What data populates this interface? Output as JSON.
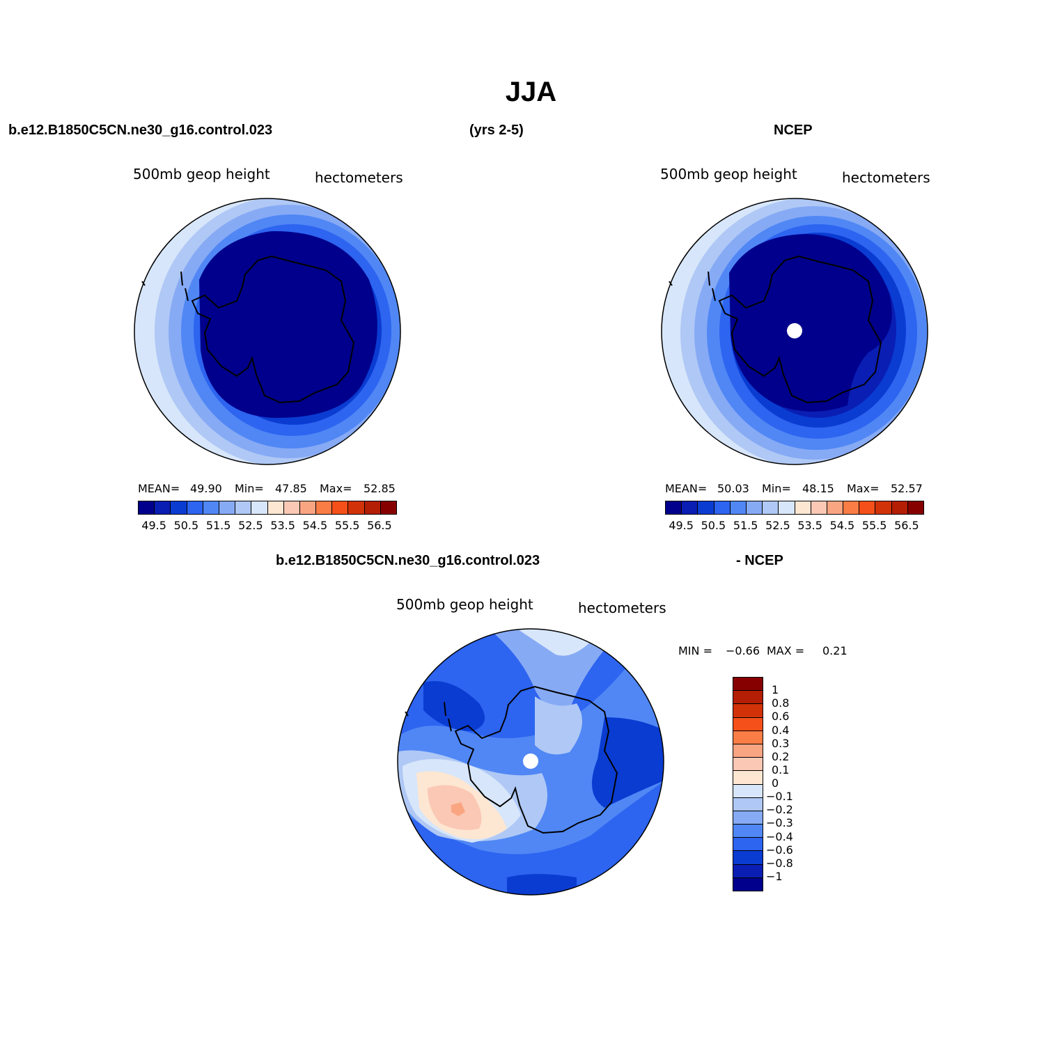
{
  "figure": {
    "title": "JJA",
    "left_header": "b.e12.B1850C5CN.ne30_g16.control.023",
    "center_header": "(yrs 2-5)",
    "right_header": "NCEP"
  },
  "panels": {
    "model": {
      "variable": "500mb geop height",
      "units": "hectometers",
      "mean_label": "MEAN=",
      "mean": "49.90",
      "min_label": "Min=",
      "min": "47.85",
      "max_label": "Max=",
      "max": "52.85"
    },
    "obs": {
      "variable": "500mb geop height",
      "units": "hectometers",
      "mean_label": "MEAN=",
      "mean": "50.03",
      "min_label": "Min=",
      "min": "48.15",
      "max_label": "Max=",
      "max": "52.57"
    },
    "diff": {
      "left_header": "b.e12.B1850C5CN.ne30_g16.control.023",
      "right_header": "- NCEP",
      "variable": "500mb geop height",
      "units": "hectometers",
      "min_label": "MIN =",
      "min": "−0.66",
      "max_label": "MAX =",
      "max": "0.21"
    }
  },
  "colorbars": {
    "absolute": {
      "colors": [
        "#00008c",
        "#0a1eb4",
        "#0a3cd2",
        "#2d64f0",
        "#5087f5",
        "#87aaf5",
        "#afc8f5",
        "#d7e6fa",
        "#fde6d2",
        "#fac8b4",
        "#faa582",
        "#fa7d46",
        "#f55019",
        "#d23208",
        "#b41e05",
        "#870000"
      ],
      "tick_labels": [
        "49.5",
        "50.5",
        "51.5",
        "52.5",
        "53.5",
        "54.5",
        "55.5",
        "56.5"
      ]
    },
    "difference": {
      "colors": [
        "#00008c",
        "#0a1eb4",
        "#0a3cd2",
        "#2d64f0",
        "#5087f5",
        "#87aaf5",
        "#afc8f5",
        "#d7e6fa",
        "#fde6d2",
        "#fac8b4",
        "#faa582",
        "#fa7d46",
        "#f55019",
        "#d23208",
        "#b41e05",
        "#870000"
      ],
      "tick_labels": [
        "−1",
        "−0.8",
        "−0.6",
        "−0.4",
        "−0.3",
        "−0.2",
        "−0.1",
        "0",
        "0.1",
        "0.2",
        "0.3",
        "0.4",
        "0.6",
        "0.8",
        "1"
      ]
    }
  }
}
